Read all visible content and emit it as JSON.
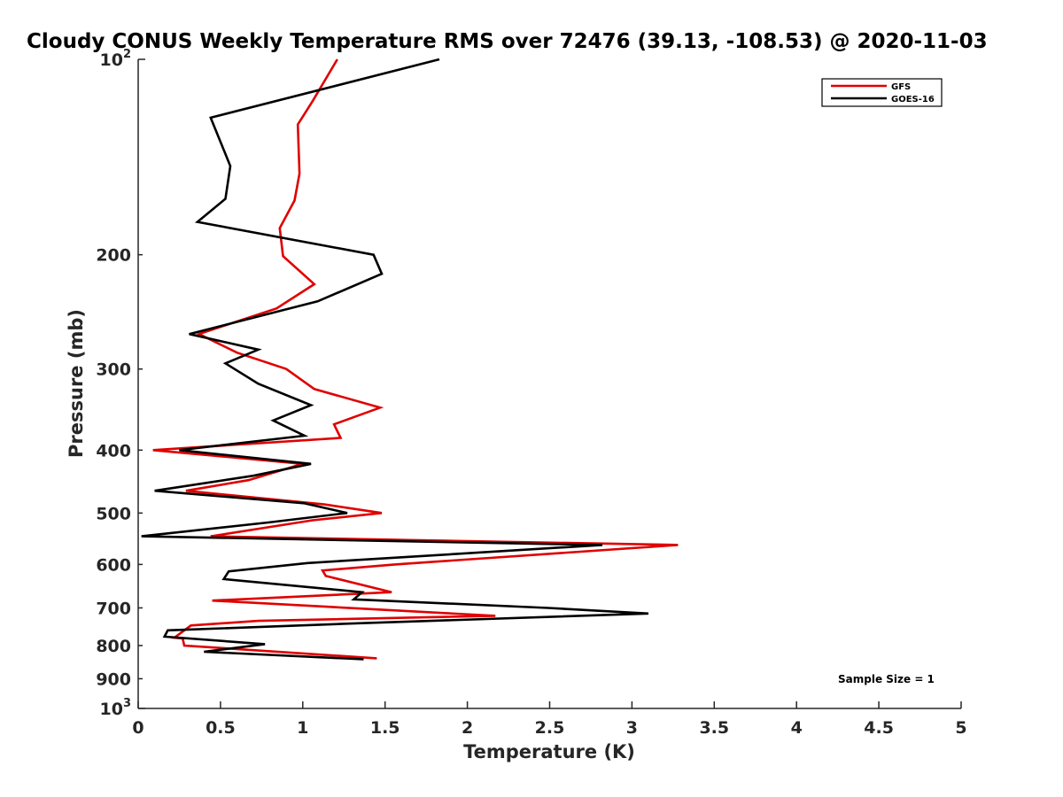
{
  "chart_data": {
    "type": "line",
    "title": "Cloudy CONUS Weekly Temperature RMS over 72476 (39.13, -108.53) @ 2020-11-03",
    "xlabel": "Temperature (K)",
    "ylabel": "Pressure (mb)",
    "xlim": [
      0,
      5
    ],
    "ylim": [
      1000,
      100
    ],
    "y_scale": "log",
    "y_reversed": true,
    "x_ticks": [
      0,
      0.5,
      1,
      1.5,
      2,
      2.5,
      3,
      3.5,
      4,
      4.5,
      5
    ],
    "x_tick_labels": [
      "0",
      "0.5",
      "1",
      "1.5",
      "2",
      "2.5",
      "3",
      "3.5",
      "4",
      "4.5",
      "5"
    ],
    "y_ticks": [
      100,
      200,
      300,
      400,
      500,
      600,
      700,
      800,
      900,
      1000
    ],
    "y_tick_labels": [
      {
        "base": "10",
        "exp": "2"
      },
      {
        "base": "200",
        "exp": ""
      },
      {
        "base": "300",
        "exp": ""
      },
      {
        "base": "400",
        "exp": ""
      },
      {
        "base": "500",
        "exp": ""
      },
      {
        "base": "600",
        "exp": ""
      },
      {
        "base": "700",
        "exp": ""
      },
      {
        "base": "800",
        "exp": ""
      },
      {
        "base": "900",
        "exp": ""
      },
      {
        "base": "10",
        "exp": "3"
      }
    ],
    "grid": false,
    "legend_position": "top-right",
    "annotation": "Sample Size = 1",
    "series": [
      {
        "name": "GFS",
        "color": "#e00000",
        "points": [
          {
            "x": 1.21,
            "p": 100
          },
          {
            "x": 1.06,
            "p": 116
          },
          {
            "x": 0.97,
            "p": 126
          },
          {
            "x": 0.98,
            "p": 150
          },
          {
            "x": 0.95,
            "p": 165
          },
          {
            "x": 0.86,
            "p": 182
          },
          {
            "x": 0.88,
            "p": 201
          },
          {
            "x": 1.07,
            "p": 222
          },
          {
            "x": 0.84,
            "p": 242
          },
          {
            "x": 0.37,
            "p": 265
          },
          {
            "x": 0.6,
            "p": 283
          },
          {
            "x": 0.9,
            "p": 300
          },
          {
            "x": 1.07,
            "p": 322
          },
          {
            "x": 1.47,
            "p": 344
          },
          {
            "x": 1.19,
            "p": 365
          },
          {
            "x": 1.23,
            "p": 383
          },
          {
            "x": 0.09,
            "p": 400
          },
          {
            "x": 1.0,
            "p": 420
          },
          {
            "x": 0.67,
            "p": 445
          },
          {
            "x": 0.29,
            "p": 462
          },
          {
            "x": 1.13,
            "p": 485
          },
          {
            "x": 1.48,
            "p": 500
          },
          {
            "x": 1.06,
            "p": 513
          },
          {
            "x": 0.44,
            "p": 543
          },
          {
            "x": 3.28,
            "p": 560
          },
          {
            "x": 1.56,
            "p": 600
          },
          {
            "x": 1.12,
            "p": 613
          },
          {
            "x": 1.14,
            "p": 625
          },
          {
            "x": 1.54,
            "p": 662
          },
          {
            "x": 0.45,
            "p": 682
          },
          {
            "x": 2.17,
            "p": 720
          },
          {
            "x": 0.73,
            "p": 733
          },
          {
            "x": 0.32,
            "p": 745
          },
          {
            "x": 0.22,
            "p": 778
          },
          {
            "x": 0.27,
            "p": 780
          },
          {
            "x": 0.28,
            "p": 800
          },
          {
            "x": 1.45,
            "p": 837
          }
        ]
      },
      {
        "name": "GOES-16",
        "color": "#000000",
        "points": [
          {
            "x": 1.83,
            "p": 100
          },
          {
            "x": 0.44,
            "p": 123
          },
          {
            "x": 0.56,
            "p": 146
          },
          {
            "x": 0.53,
            "p": 164
          },
          {
            "x": 0.36,
            "p": 178
          },
          {
            "x": 1.43,
            "p": 200
          },
          {
            "x": 1.48,
            "p": 214
          },
          {
            "x": 1.09,
            "p": 236
          },
          {
            "x": 0.31,
            "p": 265
          },
          {
            "x": 0.73,
            "p": 280
          },
          {
            "x": 0.53,
            "p": 294
          },
          {
            "x": 0.73,
            "p": 316
          },
          {
            "x": 1.05,
            "p": 341
          },
          {
            "x": 0.82,
            "p": 360
          },
          {
            "x": 1.01,
            "p": 380
          },
          {
            "x": 0.25,
            "p": 400
          },
          {
            "x": 1.05,
            "p": 420
          },
          {
            "x": 0.7,
            "p": 438
          },
          {
            "x": 0.1,
            "p": 462
          },
          {
            "x": 1.01,
            "p": 483
          },
          {
            "x": 1.27,
            "p": 500
          },
          {
            "x": 0.79,
            "p": 517
          },
          {
            "x": 0.02,
            "p": 543
          },
          {
            "x": 2.82,
            "p": 560
          },
          {
            "x": 1.03,
            "p": 597
          },
          {
            "x": 0.55,
            "p": 615
          },
          {
            "x": 0.52,
            "p": 632
          },
          {
            "x": 1.36,
            "p": 662
          },
          {
            "x": 1.31,
            "p": 679
          },
          {
            "x": 2.49,
            "p": 700
          },
          {
            "x": 3.1,
            "p": 714
          },
          {
            "x": 1.3,
            "p": 740
          },
          {
            "x": 0.18,
            "p": 758
          },
          {
            "x": 0.16,
            "p": 775
          },
          {
            "x": 0.77,
            "p": 796
          },
          {
            "x": 0.4,
            "p": 818
          },
          {
            "x": 1.37,
            "p": 840
          }
        ]
      }
    ]
  }
}
